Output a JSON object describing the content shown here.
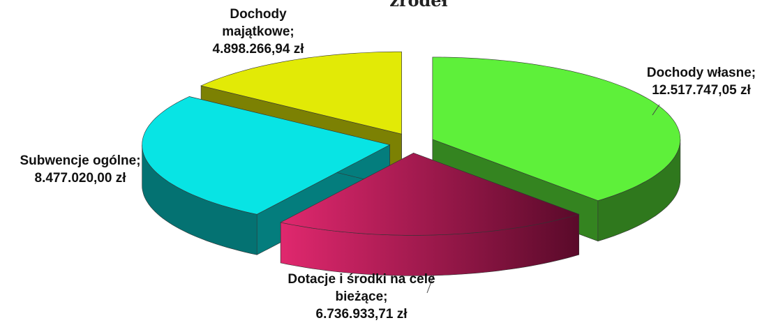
{
  "chart_data": {
    "type": "pie3d",
    "title": "źródeł",
    "categories": [
      "Dochody własne;",
      "Dotacje i środki na cele bieżące;",
      "Subwencje ogólne;",
      "Dochody majątkowe;"
    ],
    "values": [
      12517747.05,
      6736933.71,
      8477020.0,
      4898266.94
    ],
    "value_labels": [
      "12.517.747,05  zł",
      "6.736.933,71  zł",
      "8.477.020,00  zł",
      "4.898.266,94  zł"
    ],
    "colors": [
      "#5ef03a",
      "#e0286e",
      "#08e4e4",
      "#e2ea06"
    ]
  }
}
